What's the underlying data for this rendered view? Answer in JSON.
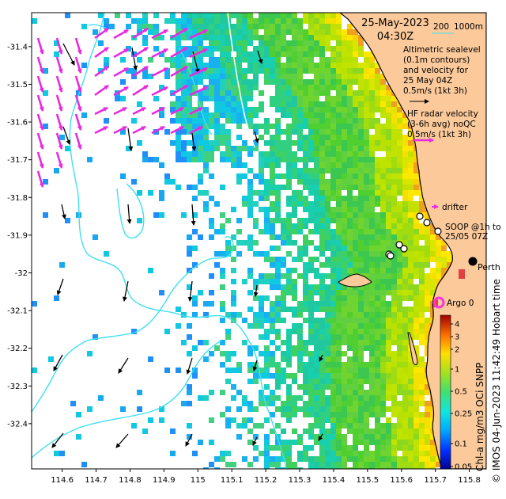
{
  "header": {
    "date": "25-May-2023",
    "time": "04:30Z",
    "scale_label": "200",
    "scale_label2": "1000m"
  },
  "legend": {
    "altimetry": [
      "Altimetric sealevel",
      "(0.1m contours)",
      "and velocity for",
      "25 May 04Z",
      "0.5m/s (1kt 3h)"
    ],
    "hf_radar": [
      "HF radar velocity",
      "(3-6h avg) noQC",
      "0.5m/s (1kt 3h)"
    ],
    "drifter": "drifter",
    "soop": [
      "SOOP @1h to",
      "25/05 07Z"
    ],
    "argo": "Argo 0",
    "city": "Perth"
  },
  "colorbar": {
    "title": "Chl-a mg/m3 OCi SNPP",
    "ticks": [
      "4",
      "3",
      "2",
      "1",
      "0.5",
      "0.25",
      "0.1",
      "0.05"
    ]
  },
  "credit": "© IMOS 04-Jun-2023 11:42:49 Hobart time",
  "axes": {
    "x_ticks": [
      "114.6",
      "114.7",
      "114.8",
      "114.9",
      "115",
      "115.1",
      "115.2",
      "115.3",
      "115.4",
      "115.5",
      "115.6",
      "115.7",
      "115.8"
    ],
    "y_ticks": [
      "-31.4",
      "-31.5",
      "-31.6",
      "-31.7",
      "-31.8",
      "-31.9",
      "-32",
      "-32.1",
      "-32.2",
      "-32.3",
      "-32.4"
    ],
    "x_range": [
      114.51,
      115.85
    ],
    "y_range": [
      -32.52,
      -31.31
    ]
  },
  "colors": {
    "land": "#fbc99a",
    "hf_arrow": "#e92ae0",
    "alt_arrow": "#000000",
    "contour": "#3fe0f0",
    "argo": "#ff33dd"
  }
}
